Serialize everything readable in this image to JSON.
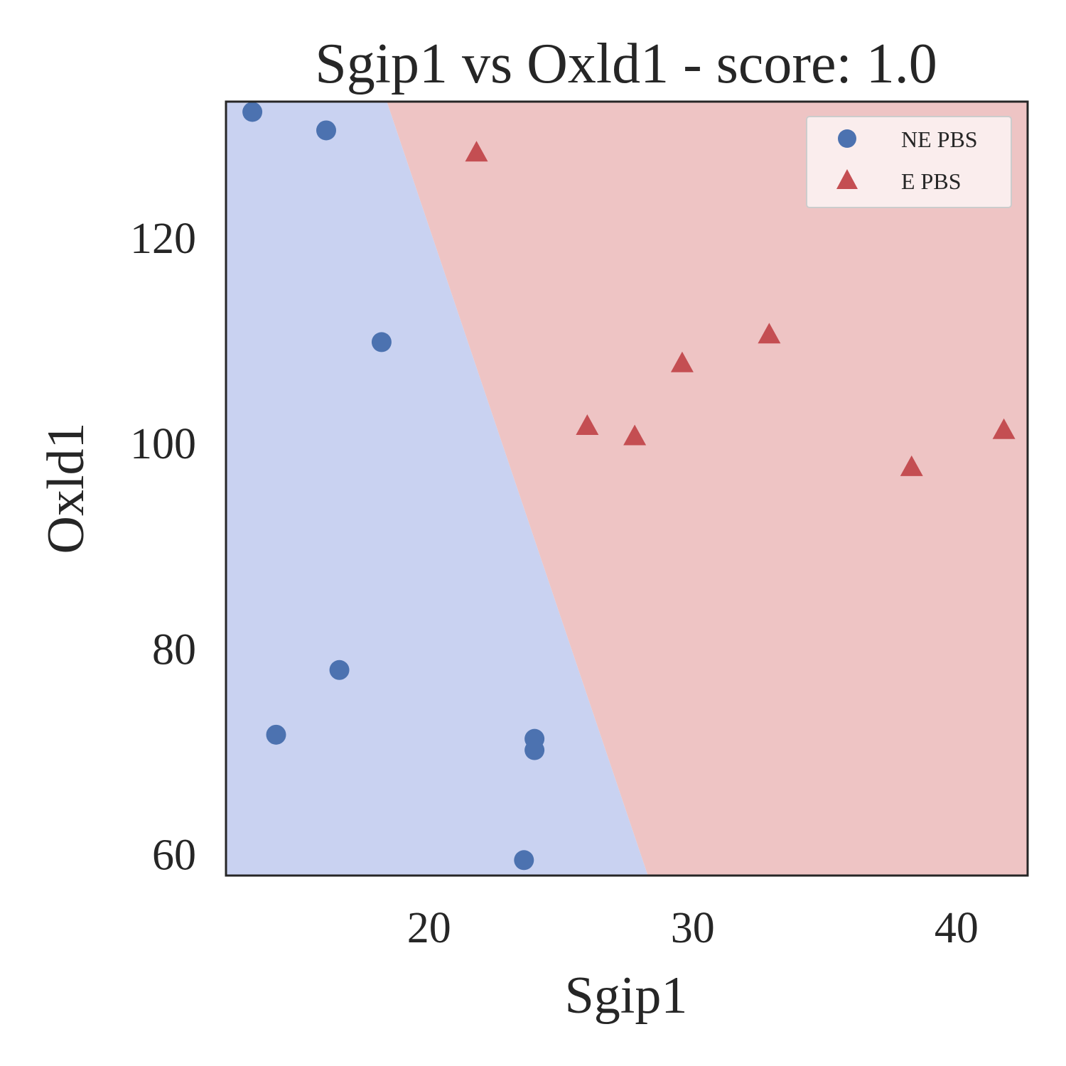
{
  "chart_data": {
    "type": "scatter",
    "title": "Sgip1 vs Oxld1 - score: 1.0",
    "xlabel": "Sgip1",
    "ylabel": "Oxld1",
    "xlim": [
      12.3,
      42.7
    ],
    "ylim": [
      57.9,
      133.2
    ],
    "xticks": [
      20,
      30,
      40
    ],
    "yticks": [
      60,
      80,
      100,
      120
    ],
    "grid": false,
    "legend_position": "top-right",
    "decision_boundary": {
      "points": [
        [
          18.4,
          133.2
        ],
        [
          28.3,
          57.9
        ]
      ],
      "left_region_class": "NE PBS",
      "right_region_class": "E PBS",
      "left_region_color": "#c9d2f1",
      "right_region_color": "#eec4c4"
    },
    "series": [
      {
        "name": "NE PBS",
        "marker": "circle",
        "color": "#4c72b0",
        "points": [
          [
            13.3,
            132.2
          ],
          [
            16.1,
            130.4
          ],
          [
            18.2,
            109.8
          ],
          [
            16.6,
            77.9
          ],
          [
            14.2,
            71.6
          ],
          [
            24.0,
            71.2
          ],
          [
            24.0,
            70.1
          ],
          [
            23.6,
            59.4
          ]
        ]
      },
      {
        "name": "E PBS",
        "marker": "triangle",
        "color": "#c44e52",
        "points": [
          [
            21.8,
            128.2
          ],
          [
            26.0,
            101.6
          ],
          [
            27.8,
            100.6
          ],
          [
            29.6,
            107.7
          ],
          [
            32.9,
            110.5
          ],
          [
            38.3,
            97.6
          ],
          [
            41.8,
            101.2
          ]
        ]
      }
    ]
  }
}
